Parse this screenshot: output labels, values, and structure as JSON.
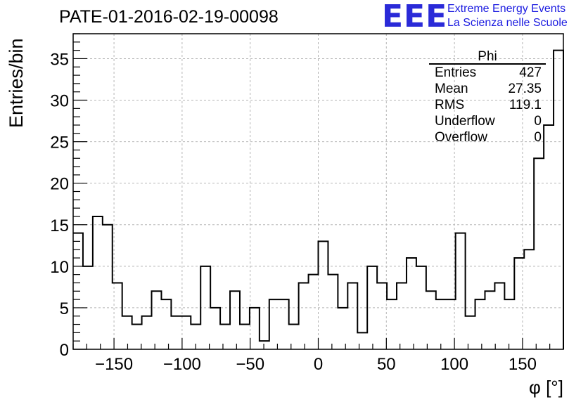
{
  "header": {
    "run_title": "PATE-01-2016-02-19-00098",
    "logo_text": "EEE",
    "logo_line1": "Extreme Energy Events",
    "logo_line2": "La Scienza nelle Scuole"
  },
  "colors": {
    "logo": "#2a2ad8",
    "logo_text": "#1a1ae0",
    "histogram": "#000000",
    "grid": "#b5b5b5"
  },
  "stats": {
    "title": "Phi",
    "rows": [
      {
        "label": "Entries",
        "value": "427"
      },
      {
        "label": "Mean",
        "value": "27.35"
      },
      {
        "label": "RMS",
        "value": "119.1"
      },
      {
        "label": "Underflow",
        "value": "0"
      },
      {
        "label": "Overflow",
        "value": "0"
      }
    ]
  },
  "chart_data": {
    "type": "bar",
    "title": "PATE-01-2016-02-19-00098",
    "xlabel": "φ [°]",
    "ylabel": "Entries/bin",
    "xlim": [
      -180,
      180
    ],
    "ylim": [
      0,
      38
    ],
    "bin_width": 7.2,
    "x_ticks": [
      -150,
      -100,
      -50,
      0,
      50,
      100,
      150
    ],
    "x_tick_labels": [
      "−150",
      "−100",
      "−50",
      "0",
      "50",
      "100",
      "150"
    ],
    "y_ticks": [
      0,
      5,
      10,
      15,
      20,
      25,
      30,
      35
    ],
    "grid": true,
    "series": [
      {
        "name": "Phi",
        "bin_edges_start": -180,
        "values": [
          14,
          10,
          16,
          15,
          8,
          4,
          3,
          4,
          7,
          6,
          4,
          4,
          3,
          10,
          5,
          3,
          7,
          3,
          5,
          1,
          6,
          6,
          3,
          8,
          9,
          13,
          9,
          5,
          8,
          2,
          10,
          8,
          6,
          8,
          11,
          10,
          7,
          6,
          6,
          14,
          4,
          6,
          7,
          8,
          6,
          11,
          12,
          23,
          27,
          36
        ]
      }
    ]
  }
}
